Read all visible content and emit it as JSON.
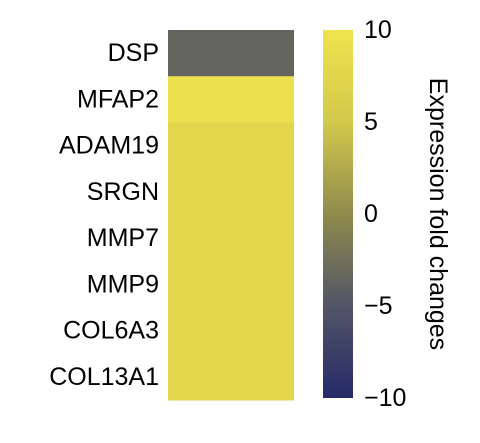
{
  "chart_data": {
    "type": "heatmap",
    "rows": [
      "DSP",
      "MFAP2",
      "ADAM19",
      "SRGN",
      "MMP7",
      "MMP9",
      "COL6A3",
      "COL13A1"
    ],
    "values": [
      -3.5,
      9.5,
      7.5,
      7.5,
      7.5,
      7.5,
      7.5,
      7.5
    ],
    "colorbar": {
      "label": "Expression fold changes",
      "min": -10,
      "max": 10,
      "ticks": [
        10,
        5,
        0,
        -5,
        -10
      ],
      "tick_labels": [
        "10",
        "5",
        "0",
        "−5",
        "−10"
      ],
      "colors": [
        "#262a68",
        "#525566",
        "#8f8b4d",
        "#d3c94b",
        "#efe34c"
      ]
    },
    "grid": false
  }
}
